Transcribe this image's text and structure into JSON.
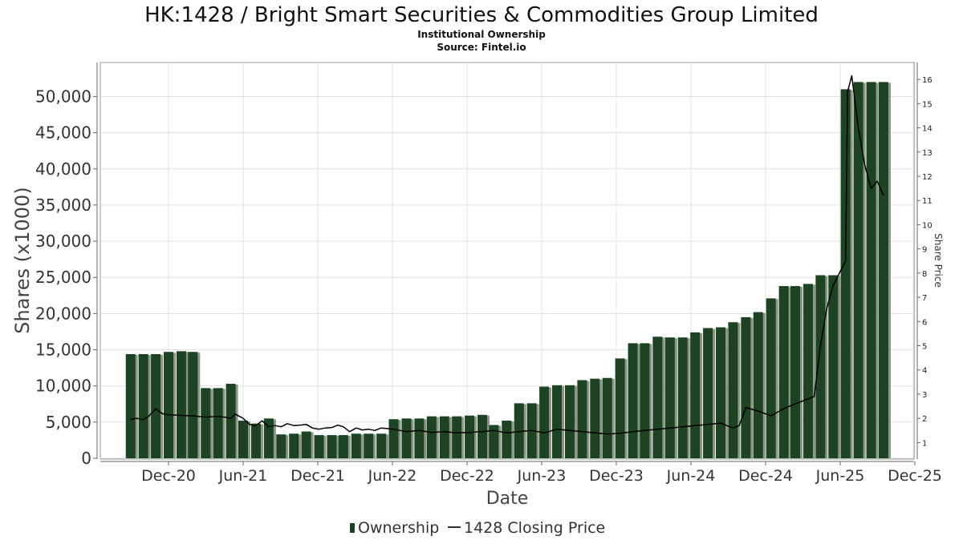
{
  "chart_data": {
    "type": "bar",
    "title": "HK:1428 / Bright Smart Securities & Commodities Group Limited",
    "subtitle_1": "Institutional Ownership",
    "subtitle_2": "Source: Fintel.io",
    "xlabel": "Date",
    "ylabel_left": "Shares (x1000)",
    "ylabel_right": "Share Price",
    "x_tick_labels": [
      "Dec-20",
      "Jun-21",
      "Dec-21",
      "Jun-22",
      "Dec-22",
      "Jun-23",
      "Dec-23",
      "Jun-24",
      "Dec-24",
      "Jun-25",
      "Dec-25"
    ],
    "y_left_ticks": [
      "0",
      "5,000",
      "10,000",
      "15,000",
      "20,000",
      "25,000",
      "30,000",
      "35,000",
      "40,000",
      "45,000",
      "50,000"
    ],
    "y_right_ticks": [
      "1",
      "2",
      "3",
      "4",
      "5",
      "6",
      "7",
      "8",
      "9",
      "10",
      "11",
      "12",
      "13",
      "14",
      "15",
      "16"
    ],
    "ylim_left": [
      0,
      54700
    ],
    "ylim_right": [
      0.35,
      16.7
    ],
    "legend": {
      "placement": "bottom-center",
      "ownership_label": "Ownership",
      "price_label": "1428 Closing Price"
    },
    "colors": {
      "bar": "#1c4422",
      "bar_shadow": "#8a9488",
      "price_line": "#000000",
      "grid": "#e0e0e0"
    },
    "series": [
      {
        "name": "Ownership",
        "kind": "bar",
        "x": [
          "2020-09-30",
          "2020-10-31",
          "2020-11-30",
          "2020-12-31",
          "2021-01-31",
          "2021-02-28",
          "2021-03-31",
          "2021-04-30",
          "2021-05-31",
          "2021-06-30",
          "2021-07-31",
          "2021-08-31",
          "2021-09-30",
          "2021-10-31",
          "2021-11-30",
          "2021-12-31",
          "2022-01-31",
          "2022-02-28",
          "2022-03-31",
          "2022-04-30",
          "2022-05-31",
          "2022-06-30",
          "2022-07-31",
          "2022-08-31",
          "2022-09-30",
          "2022-10-31",
          "2022-11-30",
          "2022-12-31",
          "2023-01-31",
          "2023-02-28",
          "2023-03-31",
          "2023-04-30",
          "2023-05-31",
          "2023-06-30",
          "2023-07-31",
          "2023-08-31",
          "2023-09-30",
          "2023-10-31",
          "2023-11-30",
          "2023-12-31",
          "2024-01-31",
          "2024-02-29",
          "2024-03-31",
          "2024-04-30",
          "2024-05-31",
          "2024-06-30",
          "2024-07-31",
          "2024-08-31",
          "2024-09-30",
          "2024-10-31",
          "2024-11-30",
          "2024-12-31",
          "2025-01-31",
          "2025-02-28",
          "2025-03-31",
          "2025-04-30",
          "2025-05-31",
          "2025-06-30",
          "2025-07-31",
          "2025-08-31",
          "2025-09-30"
        ],
        "values": [
          14400,
          14400,
          14400,
          14700,
          14800,
          14700,
          9700,
          9700,
          10300,
          5200,
          4800,
          5500,
          3300,
          3400,
          3700,
          3200,
          3200,
          3200,
          3400,
          3400,
          3400,
          5400,
          5500,
          5500,
          5800,
          5800,
          5800,
          5900,
          6000,
          4600,
          5200,
          7600,
          7600,
          9900,
          10100,
          10100,
          10800,
          11000,
          11100,
          13800,
          15900,
          15900,
          16800,
          16700,
          16700,
          17400,
          18000,
          18100,
          18800,
          19500,
          20200,
          22100,
          23800,
          23800,
          24100,
          25300,
          25300,
          51000,
          52000,
          52000,
          52000
        ]
      },
      {
        "name": "1428 Closing Price",
        "kind": "line",
        "x": [
          "2020-09-30",
          "2020-10-15",
          "2020-10-31",
          "2020-11-15",
          "2020-11-30",
          "2020-12-15",
          "2020-12-31",
          "2021-01-31",
          "2021-02-28",
          "2021-03-31",
          "2021-04-30",
          "2021-05-15",
          "2021-05-31",
          "2021-06-10",
          "2021-06-30",
          "2021-07-15",
          "2021-07-31",
          "2021-08-15",
          "2021-08-31",
          "2021-09-15",
          "2021-09-30",
          "2021-10-15",
          "2021-10-31",
          "2021-11-15",
          "2021-11-30",
          "2021-12-15",
          "2021-12-31",
          "2022-01-15",
          "2022-01-31",
          "2022-02-15",
          "2022-02-28",
          "2022-03-15",
          "2022-03-31",
          "2022-04-15",
          "2022-04-30",
          "2022-05-15",
          "2022-05-31",
          "2022-06-30",
          "2022-07-31",
          "2022-08-31",
          "2022-09-30",
          "2022-10-31",
          "2022-11-30",
          "2022-12-31",
          "2023-01-31",
          "2023-02-28",
          "2023-03-31",
          "2023-04-30",
          "2023-05-31",
          "2023-06-30",
          "2023-07-31",
          "2023-08-31",
          "2023-09-30",
          "2023-10-31",
          "2023-11-30",
          "2023-12-31",
          "2024-01-31",
          "2024-02-29",
          "2024-03-31",
          "2024-04-30",
          "2024-05-31",
          "2024-06-30",
          "2024-07-31",
          "2024-08-31",
          "2024-09-30",
          "2024-10-15",
          "2024-10-31",
          "2024-11-30",
          "2024-12-31",
          "2025-01-31",
          "2025-02-28",
          "2025-03-31",
          "2025-04-15",
          "2025-04-30",
          "2025-05-15",
          "2025-05-31",
          "2025-06-15",
          "2025-06-30",
          "2025-07-05",
          "2025-07-15",
          "2025-07-31",
          "2025-08-15",
          "2025-08-31",
          "2025-09-15",
          "2025-09-30"
        ],
        "values": [
          1.96,
          2.0,
          1.95,
          2.12,
          2.4,
          2.2,
          2.15,
          2.12,
          2.1,
          2.05,
          2.08,
          2.05,
          2.0,
          2.18,
          2.0,
          1.75,
          1.7,
          1.9,
          1.65,
          1.7,
          1.65,
          1.78,
          1.7,
          1.72,
          1.75,
          1.6,
          1.55,
          1.6,
          1.62,
          1.72,
          1.65,
          1.45,
          1.6,
          1.52,
          1.55,
          1.5,
          1.6,
          1.55,
          1.45,
          1.5,
          1.42,
          1.45,
          1.4,
          1.42,
          1.45,
          1.5,
          1.4,
          1.45,
          1.5,
          1.4,
          1.55,
          1.5,
          1.45,
          1.4,
          1.35,
          1.38,
          1.45,
          1.5,
          1.55,
          1.6,
          1.65,
          1.7,
          1.75,
          1.8,
          1.6,
          1.7,
          2.45,
          2.3,
          2.1,
          2.4,
          2.6,
          2.8,
          2.9,
          5.0,
          6.5,
          7.5,
          8.0,
          8.5,
          15.5,
          16.15,
          14.0,
          12.5,
          11.5,
          11.8,
          11.2
        ]
      }
    ]
  }
}
